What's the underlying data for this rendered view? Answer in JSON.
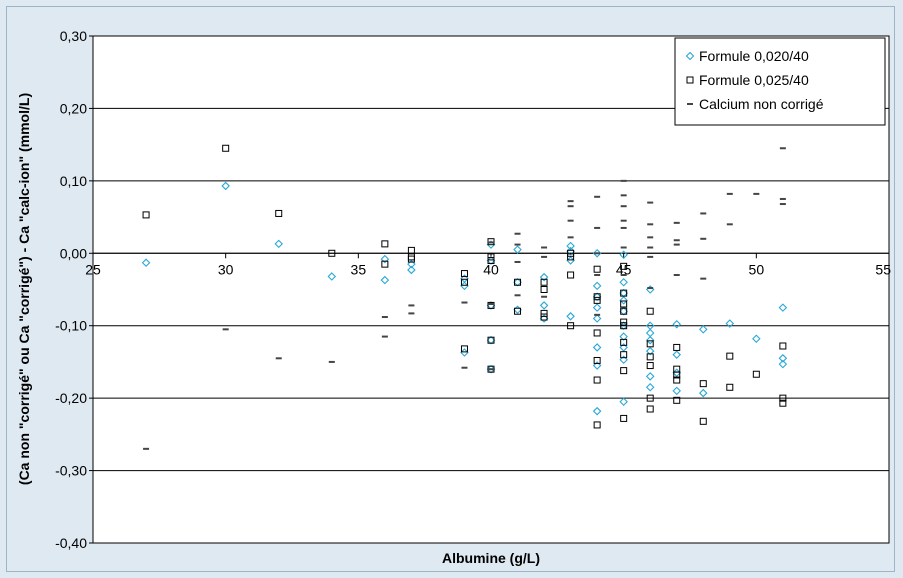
{
  "chart_data": {
    "type": "scatter",
    "xlabel": "Albumine (g/L)",
    "ylabel": "(Ca non \"corrigé\" ou Ca \"corrigé\") - Ca \"calc-ion\" (mmol/L)",
    "xlim": [
      25,
      55
    ],
    "ylim": [
      -0.4,
      0.3
    ],
    "x_ticks": [
      "25",
      "30",
      "35",
      "40",
      "45",
      "50",
      "55"
    ],
    "y_ticks": [
      "0,30",
      "0,20",
      "0,10",
      "0,00",
      "-0,10",
      "-0,20",
      "-0,30",
      "-0,40"
    ],
    "grid": "horizontal",
    "legend_position": "top-right",
    "colors": {
      "series1": "#2aa8d8",
      "series2": "#000000",
      "series3": "#444444"
    },
    "series": [
      {
        "name": "Formule 0,020/40",
        "marker": "diamond",
        "points": [
          [
            27,
            -0.013
          ],
          [
            30,
            0.093
          ],
          [
            32,
            0.013
          ],
          [
            34,
            -0.032
          ],
          [
            36,
            -0.008
          ],
          [
            36,
            -0.037
          ],
          [
            37,
            -0.015
          ],
          [
            37,
            -0.023
          ],
          [
            39,
            -0.035
          ],
          [
            39,
            -0.045
          ],
          [
            39,
            -0.137
          ],
          [
            40,
            -0.01
          ],
          [
            40,
            -0.072
          ],
          [
            40,
            -0.12
          ],
          [
            40,
            -0.16
          ],
          [
            40,
            0.012
          ],
          [
            41,
            0.005
          ],
          [
            41,
            -0.04
          ],
          [
            41,
            -0.078
          ],
          [
            42,
            -0.033
          ],
          [
            42,
            -0.072
          ],
          [
            42,
            -0.09
          ],
          [
            43,
            0.01
          ],
          [
            43,
            0.003
          ],
          [
            43,
            -0.01
          ],
          [
            43,
            -0.087
          ],
          [
            44,
            0.0
          ],
          [
            44,
            -0.045
          ],
          [
            44,
            -0.06
          ],
          [
            44,
            -0.075
          ],
          [
            44,
            -0.09
          ],
          [
            44,
            -0.13
          ],
          [
            44,
            -0.155
          ],
          [
            44,
            -0.218
          ],
          [
            45,
            -0.002
          ],
          [
            45,
            -0.04
          ],
          [
            45,
            -0.055
          ],
          [
            45,
            -0.065
          ],
          [
            45,
            -0.08
          ],
          [
            45,
            -0.1
          ],
          [
            45,
            -0.115
          ],
          [
            45,
            -0.13
          ],
          [
            45,
            -0.147
          ],
          [
            45,
            -0.205
          ],
          [
            46,
            -0.05
          ],
          [
            46,
            -0.1
          ],
          [
            46,
            -0.11
          ],
          [
            46,
            -0.12
          ],
          [
            46,
            -0.135
          ],
          [
            46,
            -0.17
          ],
          [
            46,
            -0.185
          ],
          [
            47,
            -0.098
          ],
          [
            47,
            -0.14
          ],
          [
            47,
            -0.165
          ],
          [
            47,
            -0.19
          ],
          [
            48,
            -0.105
          ],
          [
            48,
            -0.193
          ],
          [
            49,
            -0.097
          ],
          [
            50,
            -0.118
          ],
          [
            51,
            -0.075
          ],
          [
            51,
            -0.145
          ],
          [
            51,
            -0.153
          ]
        ]
      },
      {
        "name": "Formule 0,025/40",
        "marker": "square",
        "points": [
          [
            27,
            0.053
          ],
          [
            30,
            0.145
          ],
          [
            32,
            0.055
          ],
          [
            34,
            0.0
          ],
          [
            36,
            0.013
          ],
          [
            36,
            -0.015
          ],
          [
            37,
            0.004
          ],
          [
            37,
            -0.005
          ],
          [
            37,
            -0.008
          ],
          [
            39,
            -0.028
          ],
          [
            39,
            -0.04
          ],
          [
            39,
            -0.132
          ],
          [
            40,
            0.016
          ],
          [
            40,
            -0.005
          ],
          [
            40,
            -0.01
          ],
          [
            40,
            -0.072
          ],
          [
            40,
            -0.12
          ],
          [
            40,
            -0.16
          ],
          [
            41,
            -0.04
          ],
          [
            41,
            -0.08
          ],
          [
            42,
            -0.04
          ],
          [
            42,
            -0.05
          ],
          [
            42,
            -0.083
          ],
          [
            42,
            -0.088
          ],
          [
            43,
            -0.0
          ],
          [
            43,
            -0.005
          ],
          [
            43,
            -0.03
          ],
          [
            43,
            -0.1
          ],
          [
            44,
            -0.022
          ],
          [
            44,
            -0.06
          ],
          [
            44,
            -0.065
          ],
          [
            44,
            -0.11
          ],
          [
            44,
            -0.148
          ],
          [
            44,
            -0.175
          ],
          [
            44,
            -0.237
          ],
          [
            45,
            -0.018
          ],
          [
            45,
            -0.055
          ],
          [
            45,
            -0.07
          ],
          [
            45,
            -0.08
          ],
          [
            45,
            -0.095
          ],
          [
            45,
            -0.1
          ],
          [
            45,
            -0.123
          ],
          [
            45,
            -0.14
          ],
          [
            45,
            -0.162
          ],
          [
            45,
            -0.228
          ],
          [
            46,
            -0.08
          ],
          [
            46,
            -0.125
          ],
          [
            46,
            -0.143
          ],
          [
            46,
            -0.155
          ],
          [
            46,
            -0.2
          ],
          [
            46,
            -0.215
          ],
          [
            47,
            -0.13
          ],
          [
            47,
            -0.16
          ],
          [
            47,
            -0.168
          ],
          [
            47,
            -0.175
          ],
          [
            47,
            -0.203
          ],
          [
            48,
            -0.18
          ],
          [
            48,
            -0.232
          ],
          [
            49,
            -0.142
          ],
          [
            49,
            -0.185
          ],
          [
            50,
            -0.167
          ],
          [
            51,
            -0.128
          ],
          [
            51,
            -0.2
          ],
          [
            51,
            -0.207
          ]
        ]
      },
      {
        "name": "Calcium non corrigé",
        "marker": "dash",
        "points": [
          [
            27,
            -0.27
          ],
          [
            30,
            -0.105
          ],
          [
            32,
            -0.145
          ],
          [
            34,
            -0.15
          ],
          [
            36,
            -0.088
          ],
          [
            36,
            -0.115
          ],
          [
            37,
            -0.072
          ],
          [
            37,
            -0.083
          ],
          [
            39,
            -0.068
          ],
          [
            39,
            -0.158
          ],
          [
            40,
            -0.07
          ],
          [
            40,
            -0.16
          ],
          [
            40,
            0.015
          ],
          [
            41,
            0.027
          ],
          [
            41,
            0.012
          ],
          [
            41,
            -0.012
          ],
          [
            41,
            -0.058
          ],
          [
            42,
            0.008
          ],
          [
            42,
            -0.005
          ],
          [
            42,
            -0.06
          ],
          [
            43,
            0.072
          ],
          [
            43,
            0.065
          ],
          [
            43,
            0.045
          ],
          [
            43,
            0.022
          ],
          [
            44,
            0.078
          ],
          [
            44,
            0.035
          ],
          [
            44,
            0.0
          ],
          [
            44,
            -0.03
          ],
          [
            44,
            -0.085
          ],
          [
            45,
            0.1
          ],
          [
            45,
            0.08
          ],
          [
            45,
            0.065
          ],
          [
            45,
            0.045
          ],
          [
            45,
            0.035
          ],
          [
            45,
            0.008
          ],
          [
            45,
            -0.03
          ],
          [
            46,
            0.07
          ],
          [
            46,
            0.04
          ],
          [
            46,
            0.022
          ],
          [
            46,
            0.008
          ],
          [
            46,
            -0.005
          ],
          [
            46,
            -0.048
          ],
          [
            47,
            0.042
          ],
          [
            47,
            0.018
          ],
          [
            47,
            0.012
          ],
          [
            47,
            -0.03
          ],
          [
            48,
            0.055
          ],
          [
            48,
            0.02
          ],
          [
            48,
            -0.035
          ],
          [
            49,
            0.082
          ],
          [
            49,
            0.04
          ],
          [
            50,
            0.082
          ],
          [
            51,
            0.145
          ],
          [
            51,
            0.075
          ],
          [
            51,
            0.068
          ]
        ]
      }
    ]
  }
}
